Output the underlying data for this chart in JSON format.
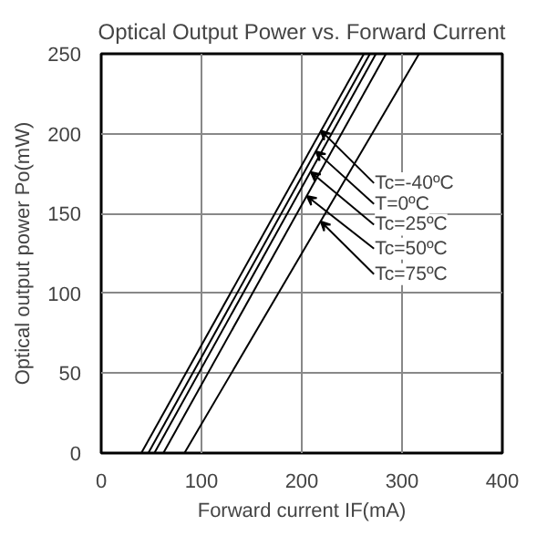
{
  "chart_data": {
    "type": "line",
    "title": "Optical Output Power vs. Forward Current",
    "xlabel": "Forward current IF(mA)",
    "ylabel": "Optical output power Po(mW)",
    "xlim": [
      0,
      400
    ],
    "ylim": [
      0,
      250
    ],
    "xticks": [
      0,
      100,
      200,
      300,
      400
    ],
    "yticks": [
      0,
      50,
      100,
      150,
      200,
      250
    ],
    "grid": true,
    "marker": "none",
    "line_style": "solid",
    "series": [
      {
        "color": "#000000",
        "x": [
          40,
          262
        ],
        "values": [
          0,
          250
        ]
      },
      {
        "color": "#000000",
        "x": [
          47,
          268
        ],
        "values": [
          0,
          250
        ]
      },
      {
        "color": "#000000",
        "x": [
          53,
          274
        ],
        "values": [
          0,
          250
        ]
      },
      {
        "color": "#000000",
        "x": [
          62,
          284
        ],
        "values": [
          0,
          250
        ]
      },
      {
        "color": "#000000",
        "x": [
          83,
          317
        ],
        "values": [
          0,
          250
        ]
      }
    ],
    "annotations": [
      {
        "text": "Tc=-40ºC",
        "x": 219,
        "y": 202
      },
      {
        "text": "T=0ºC",
        "x": 214,
        "y": 189
      },
      {
        "text": "Tc=25ºC",
        "x": 209,
        "y": 176
      },
      {
        "text": "Tc=50ºC",
        "x": 205,
        "y": 161
      },
      {
        "text": "Tc=75ºC",
        "x": 219,
        "y": 145
      }
    ]
  }
}
